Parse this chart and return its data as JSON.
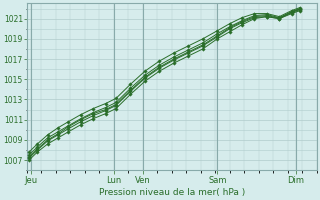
{
  "title": "Pression niveau de la mer( hPa )",
  "ylabel_ticks": [
    1007,
    1009,
    1011,
    1013,
    1015,
    1017,
    1019,
    1021
  ],
  "ylim": [
    1006.0,
    1022.5
  ],
  "xlim": [
    0,
    7.0
  ],
  "background_color": "#d6ecec",
  "grid_color": "#b0cccc",
  "grid_color_dark": "#88aaaa",
  "line_color": "#2a6e2a",
  "marker_color": "#2a6e2a",
  "day_labels": [
    "Jeu",
    "Lun",
    "Ven",
    "Sam",
    "Dim"
  ],
  "day_positions": [
    0.1,
    2.1,
    2.8,
    4.6,
    6.5
  ],
  "vline_positions": [
    0.1,
    2.1,
    2.8,
    4.6,
    6.5
  ],
  "lines": [
    {
      "x": [
        0.05,
        0.25,
        0.5,
        0.75,
        1.0,
        1.3,
        1.6,
        1.9,
        2.15,
        2.5,
        2.85,
        3.2,
        3.55,
        3.9,
        4.25,
        4.6,
        4.9,
        5.2,
        5.5,
        5.8,
        6.1,
        6.4,
        6.6
      ],
      "y": [
        1007.0,
        1007.8,
        1008.6,
        1009.2,
        1009.8,
        1010.5,
        1011.1,
        1011.6,
        1012.1,
        1013.5,
        1014.8,
        1015.8,
        1016.6,
        1017.3,
        1018.0,
        1019.0,
        1019.7,
        1020.4,
        1021.0,
        1021.2,
        1021.0,
        1021.5,
        1021.8
      ]
    },
    {
      "x": [
        0.05,
        0.25,
        0.5,
        0.75,
        1.0,
        1.3,
        1.6,
        1.9,
        2.15,
        2.5,
        2.85,
        3.2,
        3.55,
        3.9,
        4.25,
        4.6,
        4.9,
        5.2,
        5.5,
        5.8,
        6.1,
        6.4,
        6.6
      ],
      "y": [
        1007.2,
        1008.0,
        1008.9,
        1009.5,
        1010.1,
        1010.8,
        1011.4,
        1011.9,
        1012.4,
        1013.8,
        1015.1,
        1016.1,
        1016.9,
        1017.6,
        1018.3,
        1019.2,
        1020.0,
        1020.6,
        1021.1,
        1021.2,
        1021.0,
        1021.6,
        1021.9
      ]
    },
    {
      "x": [
        0.05,
        0.25,
        0.5,
        0.75,
        1.0,
        1.3,
        1.6,
        1.9,
        2.15,
        2.5,
        2.85,
        3.2,
        3.55,
        3.9,
        4.25,
        4.6,
        4.9,
        5.2,
        5.5,
        5.8,
        6.1,
        6.4,
        6.6
      ],
      "y": [
        1007.5,
        1008.3,
        1009.2,
        1009.8,
        1010.4,
        1011.1,
        1011.7,
        1012.2,
        1012.7,
        1014.1,
        1015.4,
        1016.4,
        1017.2,
        1017.9,
        1018.6,
        1019.5,
        1020.2,
        1020.8,
        1021.3,
        1021.4,
        1021.1,
        1021.7,
        1022.0
      ]
    },
    {
      "x": [
        0.05,
        0.25,
        0.5,
        0.75,
        1.0,
        1.3,
        1.6,
        1.9,
        2.15,
        2.5,
        2.85,
        3.2,
        3.55,
        3.9,
        4.25,
        4.6,
        4.9,
        5.2,
        5.5,
        5.8,
        6.1,
        6.4,
        6.6
      ],
      "y": [
        1007.8,
        1008.6,
        1009.5,
        1010.2,
        1010.8,
        1011.5,
        1012.1,
        1012.6,
        1013.1,
        1014.5,
        1015.8,
        1016.8,
        1017.6,
        1018.3,
        1019.0,
        1019.8,
        1020.5,
        1021.1,
        1021.5,
        1021.5,
        1021.2,
        1021.8,
        1022.1
      ]
    },
    {
      "x": [
        0.05,
        0.25,
        0.5,
        0.75,
        1.0,
        1.3,
        1.6,
        1.9,
        2.15,
        2.5,
        2.85,
        3.2,
        3.55,
        3.9,
        4.25,
        4.6,
        4.9,
        5.2,
        5.5,
        5.8,
        6.1,
        6.4,
        6.6
      ],
      "y": [
        1007.3,
        1008.1,
        1009.0,
        1009.6,
        1010.3,
        1011.0,
        1011.6,
        1012.0,
        1012.5,
        1013.9,
        1015.2,
        1016.2,
        1017.0,
        1017.7,
        1018.4,
        1019.3,
        1020.1,
        1020.7,
        1021.2,
        1021.3,
        1021.05,
        1021.65,
        1021.95
      ]
    }
  ]
}
